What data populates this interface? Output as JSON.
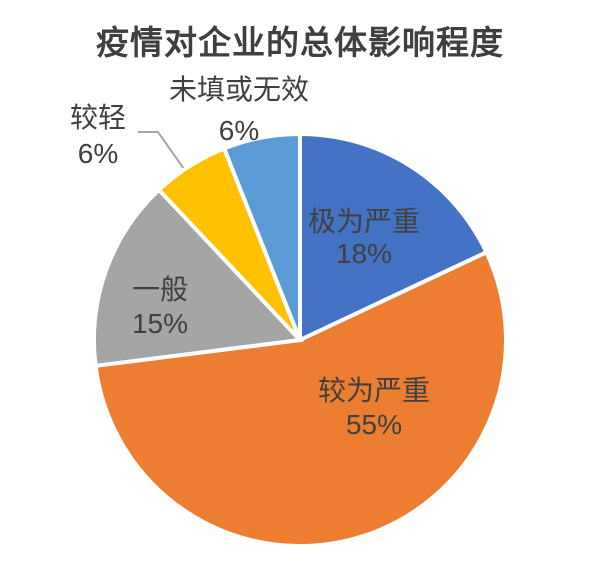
{
  "title": "疫情对企业的总体影响程度",
  "chart_data": {
    "type": "pie",
    "title": "疫情对企业的总体影响程度",
    "start_angle_deg": 0,
    "direction": "clockwise",
    "legend_position": "none",
    "grid": false,
    "text_color": "#404040",
    "slice_border_color": "#ffffff",
    "slices": [
      {
        "label": "极为严重",
        "value": 18,
        "pct_label": "18%",
        "color": "#4472C4",
        "label_placement": "inside"
      },
      {
        "label": "较为严重",
        "value": 55,
        "pct_label": "55%",
        "color": "#ED7D31",
        "label_placement": "inside"
      },
      {
        "label": "一般",
        "value": 15,
        "pct_label": "15%",
        "color": "#A5A5A5",
        "label_placement": "inside"
      },
      {
        "label": "较轻",
        "value": 6,
        "pct_label": "6%",
        "color": "#FFC000",
        "label_placement": "outside-with-leader"
      },
      {
        "label": "未填或无效",
        "value": 6,
        "pct_label": "6%",
        "color": "#5B9BD5",
        "label_placement": "outside"
      }
    ]
  }
}
